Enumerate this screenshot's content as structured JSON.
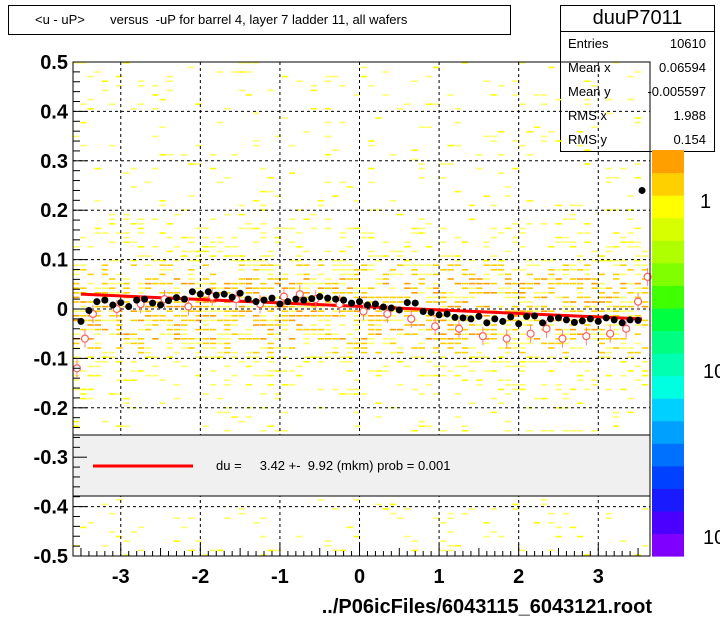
{
  "title": "<u - uP>       versus  -uP for barrel 4, layer 7 ladder 11, all wafers",
  "stats": {
    "name": "duuP7011",
    "rows": [
      {
        "key": "Entries",
        "value": "10610"
      },
      {
        "key": "Mean x",
        "value": "0.06594"
      },
      {
        "key": "Mean y",
        "value": "-0.005597"
      },
      {
        "key": "RMS x",
        "value": "1.988"
      },
      {
        "key": "RMS y",
        "value": "0.154"
      }
    ]
  },
  "legend": {
    "fit_text": "du =     3.42 +-  9.92 (mkm) prob = 0.001",
    "fit_color": "#ff0000"
  },
  "chart_data": {
    "type": "scatter",
    "title": "<u - uP>       versus  -uP for barrel 4, layer 7 ladder 11, all wafers",
    "xlabel": "../P06icFiles/6043115_6043121.root",
    "ylabel": "",
    "xlim": [
      -3.6,
      3.65
    ],
    "ylim": [
      -0.5,
      0.5
    ],
    "x_ticks": [
      -3,
      -2,
      -1,
      0,
      1,
      2,
      3
    ],
    "x_tick_labels": [
      "-3",
      "-2",
      "-1",
      "0",
      "1",
      "2",
      "3"
    ],
    "y_ticks": [
      -0.5,
      -0.4,
      -0.3,
      -0.2,
      -0.1,
      0,
      0.1,
      0.2,
      0.3,
      0.4,
      0.5
    ],
    "y_tick_labels": [
      "-0.5",
      "-0.4",
      "-0.3",
      "-0.2",
      "-0.1",
      "0",
      "0.1",
      "0.2",
      "0.3",
      "0.4",
      "0.5"
    ],
    "grid": true,
    "z_tick_labels": [
      "1",
      "10",
      "10"
    ],
    "z_colors": [
      "#7f00ff",
      "#4b00ff",
      "#1a1aff",
      "#0040ff",
      "#0070ff",
      "#00a0ff",
      "#00d0ff",
      "#00ffe0",
      "#00ffb0",
      "#00ff80",
      "#00ff40",
      "#40ff00",
      "#80ff00",
      "#b0ff00",
      "#d8ff00",
      "#ffff00",
      "#ffd000",
      "#ffa000"
    ],
    "fit": {
      "x": [
        -3.5,
        3.55
      ],
      "y": [
        0.03,
        -0.02
      ]
    },
    "series": [
      {
        "name": "profile_black",
        "x": [
          -3.5,
          -3.4,
          -3.3,
          -3.2,
          -3.1,
          -3.0,
          -2.9,
          -2.8,
          -2.7,
          -2.6,
          -2.5,
          -2.4,
          -2.3,
          -2.2,
          -2.1,
          -2.0,
          -1.9,
          -1.8,
          -1.7,
          -1.6,
          -1.5,
          -1.4,
          -1.3,
          -1.2,
          -1.1,
          -1.0,
          -0.9,
          -0.8,
          -0.7,
          -0.6,
          -0.5,
          -0.4,
          -0.3,
          -0.2,
          -0.1,
          0.0,
          0.1,
          0.2,
          0.3,
          0.4,
          0.5,
          0.6,
          0.7,
          0.8,
          0.9,
          1.0,
          1.1,
          1.2,
          1.3,
          1.4,
          1.5,
          1.6,
          1.7,
          1.8,
          1.9,
          2.0,
          2.1,
          2.2,
          2.3,
          2.4,
          2.5,
          2.6,
          2.7,
          2.8,
          2.9,
          3.0,
          3.1,
          3.2,
          3.3,
          3.4,
          3.5,
          3.55
        ],
        "y": [
          -0.025,
          -0.003,
          0.015,
          0.018,
          0.008,
          0.013,
          0.005,
          0.018,
          0.02,
          0.012,
          0.008,
          0.017,
          0.023,
          0.02,
          0.035,
          0.03,
          0.035,
          0.028,
          0.03,
          0.024,
          0.032,
          0.02,
          0.015,
          0.018,
          0.022,
          0.01,
          0.015,
          0.02,
          0.018,
          0.021,
          0.025,
          0.022,
          0.02,
          0.018,
          0.012,
          0.015,
          0.008,
          0.01,
          0.004,
          0.002,
          -0.002,
          0.013,
          0.012,
          -0.005,
          -0.007,
          -0.012,
          -0.01,
          -0.017,
          -0.018,
          -0.02,
          -0.015,
          -0.028,
          -0.02,
          -0.025,
          -0.016,
          -0.03,
          -0.015,
          -0.014,
          -0.028,
          -0.02,
          -0.018,
          -0.022,
          -0.027,
          -0.024,
          -0.02,
          -0.025,
          -0.018,
          -0.022,
          -0.028,
          -0.022,
          -0.023,
          0.24
        ]
      },
      {
        "name": "profile_open",
        "x": [
          -3.55,
          -3.45,
          -3.35,
          -3.05,
          -2.75,
          -2.45,
          -2.15,
          -1.85,
          -1.55,
          -1.25,
          -0.95,
          -0.75,
          -0.55,
          -0.25,
          0.05,
          0.35,
          0.65,
          0.95,
          1.25,
          1.55,
          1.85,
          2.15,
          2.35,
          2.55,
          2.85,
          3.15,
          3.35,
          3.5,
          3.62
        ],
        "y": [
          -0.12,
          -0.06,
          -0.01,
          0.0,
          0.01,
          0.02,
          0.005,
          0.025,
          0.02,
          0.01,
          0.025,
          0.03,
          0.02,
          0.01,
          -0.005,
          -0.01,
          -0.02,
          -0.035,
          -0.04,
          -0.055,
          -0.06,
          -0.05,
          -0.04,
          -0.06,
          -0.055,
          -0.05,
          -0.04,
          0.015,
          0.065
        ]
      }
    ]
  }
}
